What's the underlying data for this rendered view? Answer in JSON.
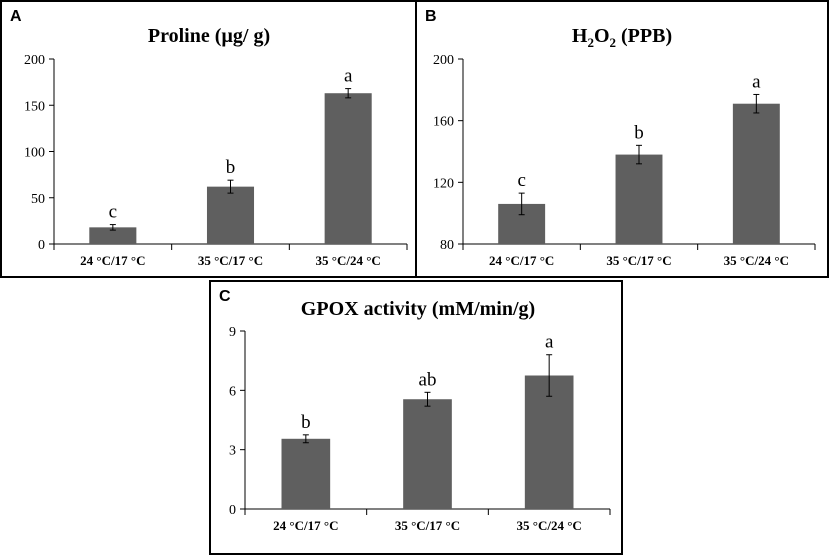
{
  "panels": [
    {
      "letter": "A"
    },
    {
      "letter": "B"
    },
    {
      "letter": "C"
    }
  ],
  "chart_data": [
    {
      "type": "bar",
      "title": "Proline (µg/ g)",
      "categories": [
        "24 °C/17 °C",
        "35 °C/17 °C",
        "35 °C/24 °C"
      ],
      "values": [
        18,
        62,
        163
      ],
      "errors": [
        3,
        7,
        5
      ],
      "labels": [
        "c",
        "b",
        "a"
      ],
      "ylim": [
        0,
        200
      ],
      "yticks": [
        "0",
        "50",
        "100",
        "150",
        "200"
      ],
      "xlabel": "",
      "ylabel": "",
      "bar_color": "#5f5f5f"
    },
    {
      "type": "bar",
      "title": "H2O2 (PPB)",
      "title_parts": [
        "H",
        "2",
        "O",
        "2",
        " (PPB)"
      ],
      "categories": [
        "24 °C/17 °C",
        "35 °C/17 °C",
        "35 °C/24 °C"
      ],
      "values": [
        106,
        138,
        171
      ],
      "errors": [
        7,
        6,
        6
      ],
      "labels": [
        "c",
        "b",
        "a"
      ],
      "ylim": [
        80,
        200
      ],
      "yticks": [
        "80",
        "120",
        "160",
        "200"
      ],
      "xlabel": "",
      "ylabel": "",
      "bar_color": "#5f5f5f"
    },
    {
      "type": "bar",
      "title": "GPOX activity (mM/min/g)",
      "categories": [
        "24 °C/17 °C",
        "35 °C/17 °C",
        "35 °C/24 °C"
      ],
      "values": [
        3.55,
        5.55,
        6.75
      ],
      "errors": [
        0.2,
        0.35,
        1.05
      ],
      "labels": [
        "b",
        "ab",
        "a"
      ],
      "ylim": [
        0,
        9
      ],
      "yticks": [
        "0",
        "3",
        "6",
        "9"
      ],
      "xlabel": "",
      "ylabel": "",
      "bar_color": "#5f5f5f"
    }
  ]
}
